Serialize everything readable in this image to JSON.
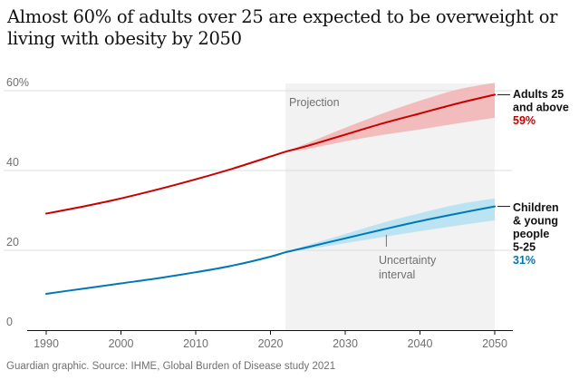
{
  "title": "Almost 60% of adults over 25 are expected to be overweight or living with obesity by 2050",
  "source": "Guardian graphic. Source: IHME, Global Burden of Disease study 2021",
  "chart_data": {
    "type": "line",
    "xlim": [
      1990,
      2050
    ],
    "ylim": [
      0,
      60
    ],
    "x_ticks": [
      1990,
      2000,
      2010,
      2020,
      2030,
      2040,
      2050
    ],
    "x_tick_labels": [
      "1990",
      "2000",
      "2010",
      "2020",
      "2030",
      "2040",
      "2050"
    ],
    "y_ticks": [
      0,
      20,
      40,
      60
    ],
    "y_tick_labels": [
      "0",
      "20",
      "40",
      "60%"
    ],
    "projection_start": 2022,
    "projection_label": "Projection",
    "uncertainty_label": [
      "Uncertainty",
      "interval"
    ],
    "uncertainty_label_year": 2035.5,
    "series": [
      {
        "name": "Adults 25 and above",
        "label_lines": [
          "Adults 25",
          "and above"
        ],
        "end_value_label": "59%",
        "color": "#c70000",
        "band_color": "#f2b3b3",
        "x": [
          1990,
          1995,
          2000,
          2005,
          2010,
          2015,
          2020,
          2022,
          2025,
          2030,
          2035,
          2040,
          2045,
          2050
        ],
        "values": [
          29.2,
          31.0,
          33.0,
          35.3,
          37.8,
          40.5,
          43.5,
          44.7,
          46.2,
          49.0,
          51.8,
          54.3,
          56.8,
          59.0
        ],
        "band_x": [
          2022,
          2025,
          2030,
          2035,
          2040,
          2045,
          2050
        ],
        "band_low": [
          44.7,
          45.4,
          47.3,
          48.9,
          50.3,
          51.8,
          53.2
        ],
        "band_high": [
          44.7,
          46.9,
          50.7,
          54.3,
          57.5,
          60.3,
          62.0
        ]
      },
      {
        "name": "Children & young people 5-25",
        "label_lines": [
          "Children",
          "& young",
          "people",
          "5-25"
        ],
        "end_value_label": "31%",
        "color": "#0077b6",
        "band_color": "#b3e0f2",
        "x": [
          1990,
          1995,
          2000,
          2005,
          2010,
          2015,
          2020,
          2022,
          2025,
          2030,
          2035,
          2040,
          2045,
          2050
        ],
        "values": [
          9.1,
          10.4,
          11.7,
          13.0,
          14.5,
          16.2,
          18.4,
          19.5,
          20.8,
          23.0,
          25.2,
          27.3,
          29.2,
          31.0
        ],
        "band_x": [
          2022,
          2025,
          2030,
          2035,
          2040,
          2045,
          2050
        ],
        "band_low": [
          19.5,
          20.3,
          21.8,
          23.3,
          24.8,
          26.2,
          27.5
        ],
        "band_high": [
          19.5,
          21.3,
          24.1,
          26.9,
          29.3,
          31.5,
          33.0
        ]
      }
    ]
  }
}
